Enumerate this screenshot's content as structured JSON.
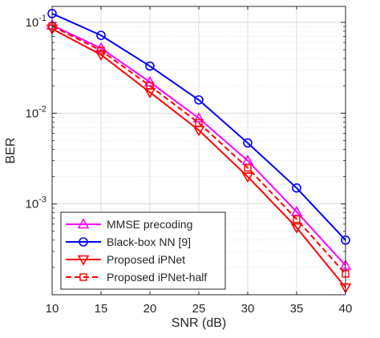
{
  "chart_data": {
    "type": "line",
    "xlabel": "SNR (dB)",
    "ylabel": "BER",
    "x": [
      10,
      15,
      20,
      25,
      30,
      35,
      40
    ],
    "xlim": [
      10,
      40
    ],
    "ylim": [
      0.0001,
      0.15
    ],
    "yscale": "log",
    "x_ticks": [
      "10",
      "15",
      "20",
      "25",
      "30",
      "35",
      "40"
    ],
    "y_ticks": [
      {
        "base": "10",
        "exp": "-1",
        "value": 0.1
      },
      {
        "base": "10",
        "exp": "-2",
        "value": 0.01
      },
      {
        "base": "10",
        "exp": "-3",
        "value": 0.001
      }
    ],
    "grid": true,
    "legend_position": "bottom-left",
    "series": [
      {
        "name": "MMSE precoding",
        "color": "#ff00ff",
        "marker": "triangle-up",
        "dash": "solid",
        "values": [
          0.093,
          0.052,
          0.022,
          0.0088,
          0.003,
          0.00082,
          0.00021
        ]
      },
      {
        "name": "Black-box NN [9]",
        "color": "#0000ff",
        "marker": "circle",
        "dash": "solid",
        "values": [
          0.125,
          0.072,
          0.033,
          0.014,
          0.0047,
          0.0015,
          0.0004
        ]
      },
      {
        "name": "Proposed iPNet",
        "color": "#ff0000",
        "marker": "triangle-down",
        "dash": "solid",
        "values": [
          0.085,
          0.044,
          0.017,
          0.0065,
          0.002,
          0.00055,
          0.00012
        ]
      },
      {
        "name": "Proposed iPNet-half",
        "color": "#ff0000",
        "marker": "square",
        "dash": "dashed",
        "values": [
          0.091,
          0.049,
          0.02,
          0.0078,
          0.0025,
          0.00068,
          0.00017
        ]
      }
    ]
  }
}
